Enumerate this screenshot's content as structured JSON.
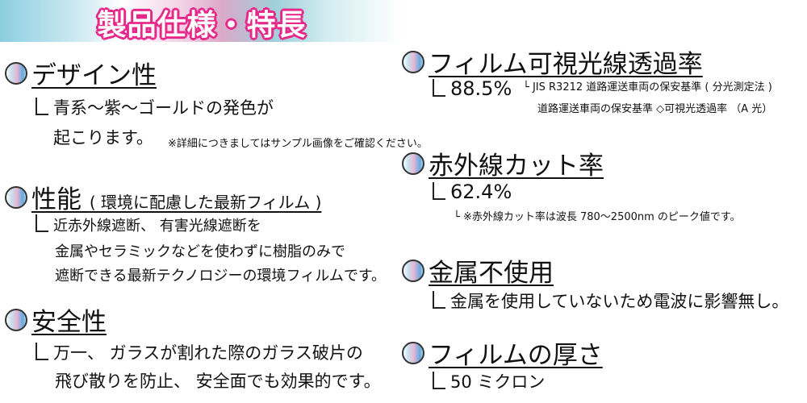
{
  "banner": {
    "title": "製品仕様・特長",
    "colors": {
      "outline": "#e6288a",
      "fill": "#ffffff"
    }
  },
  "left": {
    "design": {
      "title": "デザイン性",
      "lines": [
        "青系～紫～ゴールドの発色が",
        "起こります。"
      ],
      "note": "※詳細につきましてはサンプル画像をご確認ください。"
    },
    "performance": {
      "title": "性能",
      "subtitle": "( 環境に配慮した最新フィルム )",
      "lines": [
        "近赤外線遮断、 有害光線遮断を",
        "金属やセラミックなどを使わずに樹脂のみで",
        "遮断できる最新テクノロジーの環境フィルムです。"
      ]
    },
    "safety": {
      "title": "安全性",
      "lines": [
        "万一、 ガラスが割れた際のガラス破片の",
        "飛び散りを防止、 安全面でも効果的です。"
      ]
    }
  },
  "right": {
    "visible": {
      "title": "フィルム可視光線透過率",
      "value": "88.5%",
      "notes": [
        "JIS R3212 道路運送車両の保安基準 ( 分光測定法 )",
        "道路運送車両の保安基準 ◇可視光透過率 （A 光）"
      ]
    },
    "infrared": {
      "title": "赤外線カット率",
      "value": "62.4%",
      "note": "※赤外線カット率は波長 780～2500nm のピーク値です。"
    },
    "metal": {
      "title": "金属不使用",
      "line": "金属を使用していないため電波に影響無し。"
    },
    "thickness": {
      "title": "フィルムの厚さ",
      "value": "50 ミクロン"
    }
  }
}
